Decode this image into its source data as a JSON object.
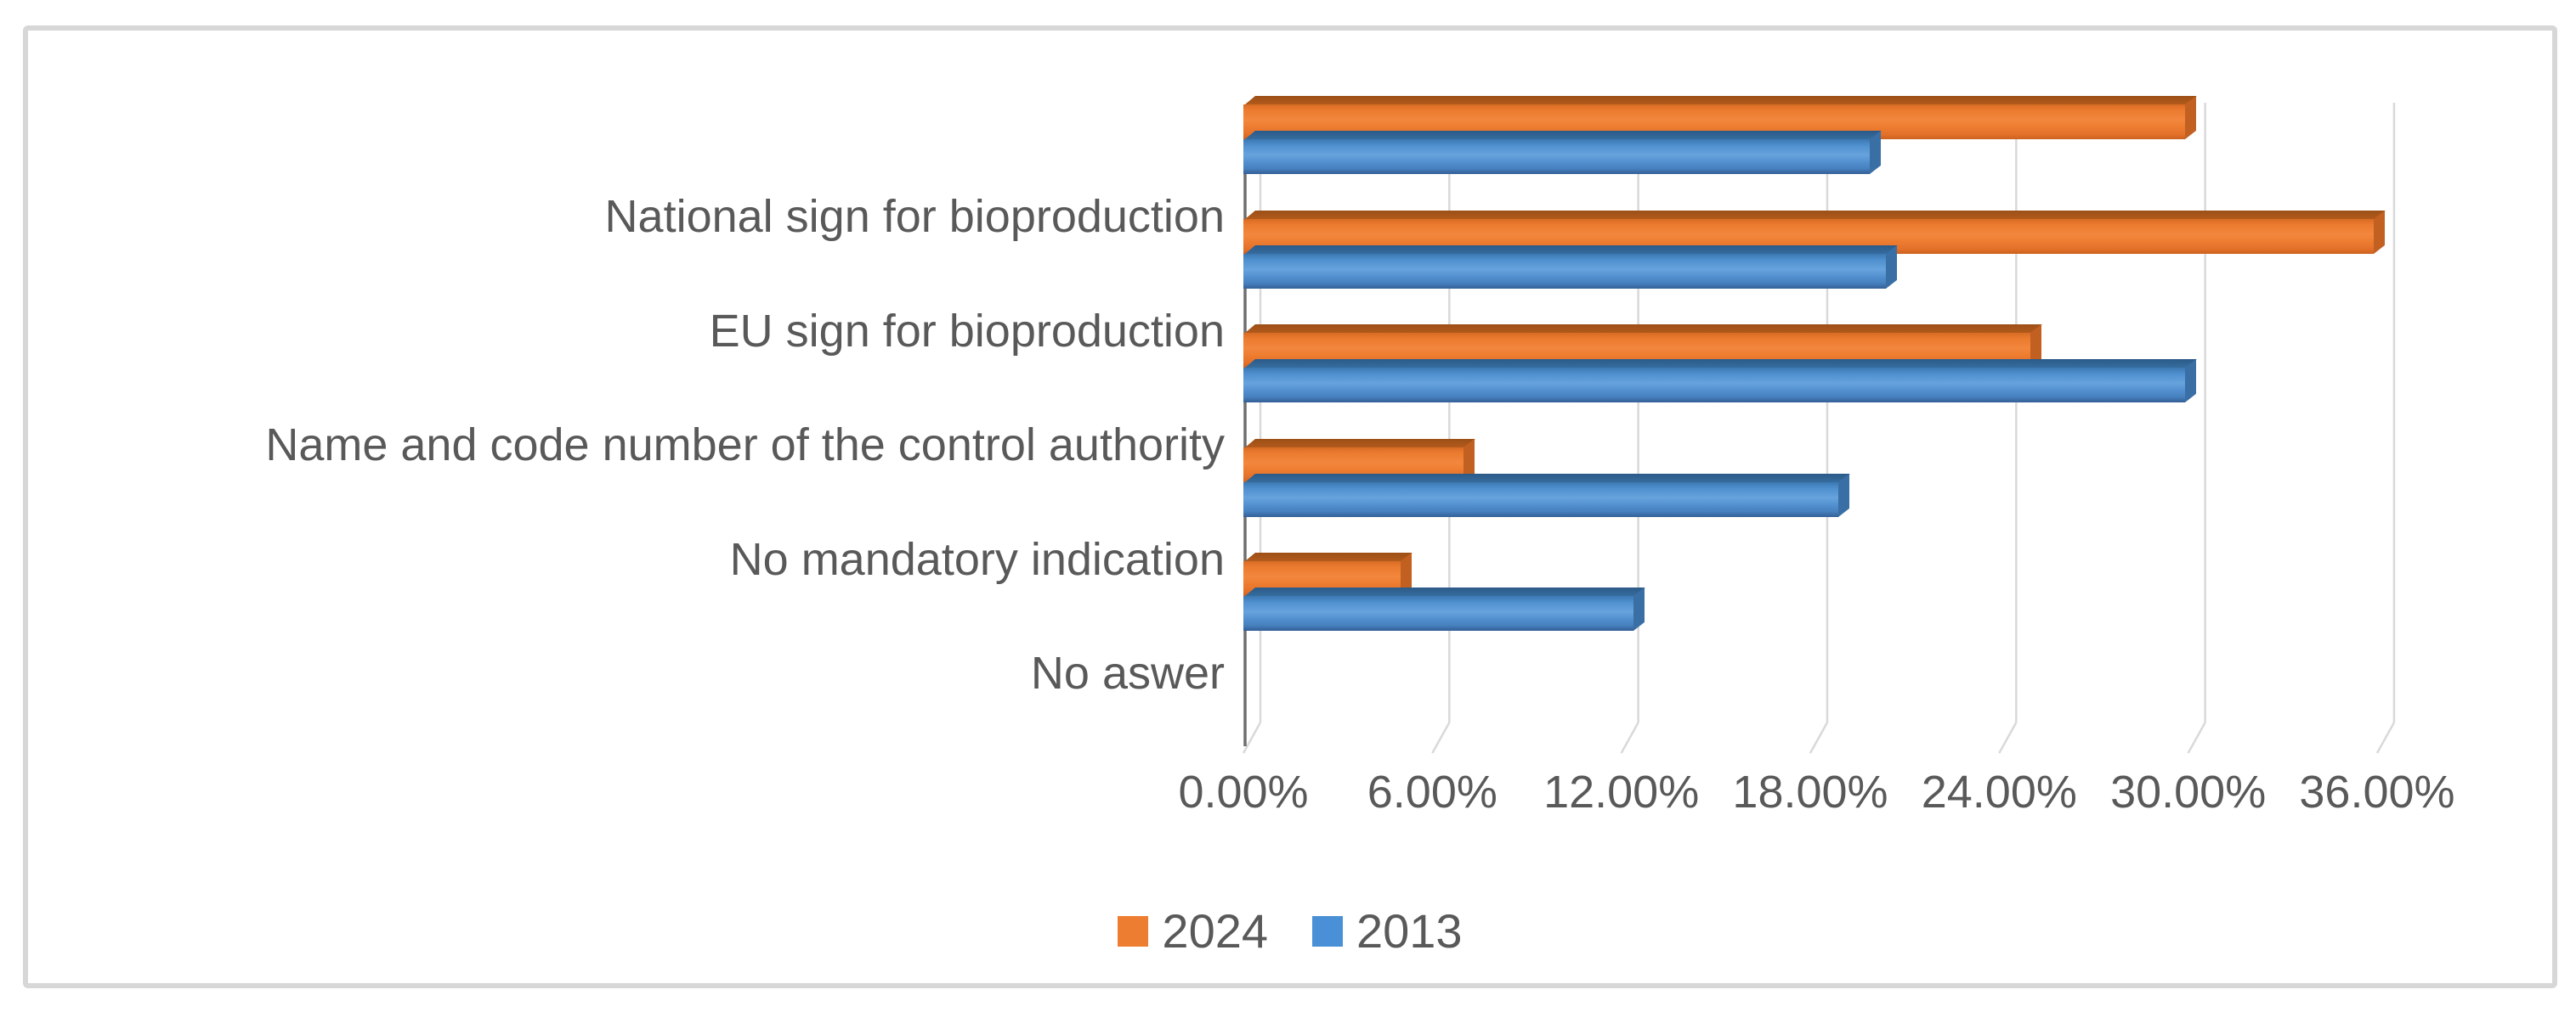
{
  "chart_data": {
    "type": "bar",
    "orientation": "horizontal",
    "style": "3d-clustered",
    "title": "",
    "categories": [
      "National sign for bioproduction",
      "EU sign for bioproduction",
      "Name and code number of the control authority",
      "No mandatory indication",
      "No aswer"
    ],
    "series": [
      {
        "name": "2024",
        "color": "#ED7D31",
        "values": [
          29.9,
          35.9,
          25.0,
          7.0,
          5.0
        ]
      },
      {
        "name": "2013",
        "color": "#4A90D6",
        "values": [
          19.9,
          20.4,
          29.9,
          18.9,
          12.4
        ]
      }
    ],
    "x_ticks": [
      "0.00%",
      "6.00%",
      "12.00%",
      "18.00%",
      "24.00%",
      "30.00%",
      "36.00%"
    ],
    "xlim": [
      0,
      36
    ],
    "x_tick_step_pct": 6,
    "grid": true,
    "gridline_color": "#d9d9d9",
    "text_color": "#595959",
    "legend_position": "bottom-center",
    "frame_border_color": "#d7d7d7"
  }
}
